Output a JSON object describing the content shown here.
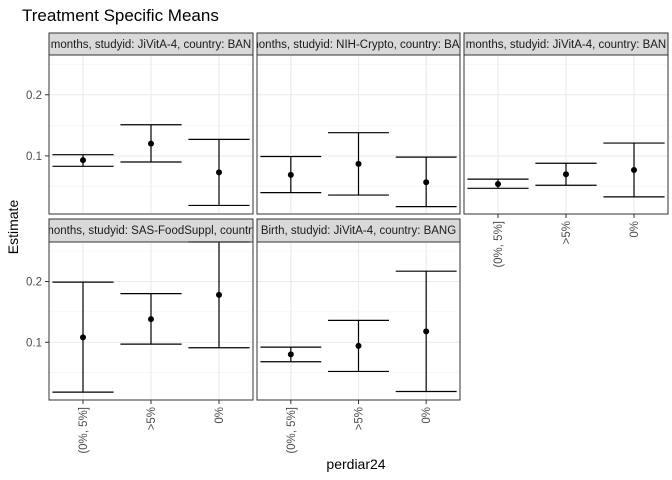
{
  "chart_data": {
    "type": "scatter",
    "title": "Treatment Specific Means",
    "xlabel": "perdiar24",
    "ylabel": "Estimate",
    "categories": [
      "(0%, 5%]",
      ">5%",
      "0%"
    ],
    "ylim": [
      0.005,
      0.265
    ],
    "y_ticks": [
      0.1,
      0.2
    ],
    "y_tick_labels": [
      "0.1",
      "0.2"
    ],
    "panels": [
      {
        "strip": "months, studyid: JiVitA-4, country: BAN",
        "points": [
          {
            "x": "(0%, 5%]",
            "estimate": 0.093,
            "lower": 0.083,
            "upper": 0.102
          },
          {
            "x": ">5%",
            "estimate": 0.12,
            "lower": 0.09,
            "upper": 0.151
          },
          {
            "x": "0%",
            "estimate": 0.073,
            "lower": 0.019,
            "upper": 0.127
          }
        ]
      },
      {
        "strip": "months, studyid: NIH-Crypto, country: BAN",
        "points": [
          {
            "x": "(0%, 5%]",
            "estimate": 0.069,
            "lower": 0.04,
            "upper": 0.099
          },
          {
            "x": ">5%",
            "estimate": 0.087,
            "lower": 0.036,
            "upper": 0.138
          },
          {
            "x": "0%",
            "estimate": 0.057,
            "lower": 0.017,
            "upper": 0.098
          }
        ]
      },
      {
        "strip": "months, studyid: JiVitA-4, country: BAN",
        "points": [
          {
            "x": "(0%, 5%]",
            "estimate": 0.054,
            "lower": 0.047,
            "upper": 0.062
          },
          {
            "x": ">5%",
            "estimate": 0.07,
            "lower": 0.052,
            "upper": 0.088
          },
          {
            "x": "0%",
            "estimate": 0.077,
            "lower": 0.033,
            "upper": 0.121
          }
        ]
      },
      {
        "strip": "months, studyid: SAS-FoodSuppl, country",
        "points": [
          {
            "x": "(0%, 5%]",
            "estimate": 0.108,
            "lower": 0.018,
            "upper": 0.199
          },
          {
            "x": ">5%",
            "estimate": 0.138,
            "lower": 0.097,
            "upper": 0.18
          },
          {
            "x": "0%",
            "estimate": 0.178,
            "lower": 0.091,
            "upper": 0.265
          }
        ]
      },
      {
        "strip": "Birth, studyid: JiVitA-4, country: BANG",
        "points": [
          {
            "x": "(0%, 5%]",
            "estimate": 0.08,
            "lower": 0.068,
            "upper": 0.092
          },
          {
            "x": ">5%",
            "estimate": 0.094,
            "lower": 0.052,
            "upper": 0.136
          },
          {
            "x": "0%",
            "estimate": 0.118,
            "lower": 0.019,
            "upper": 0.217
          }
        ]
      }
    ]
  }
}
